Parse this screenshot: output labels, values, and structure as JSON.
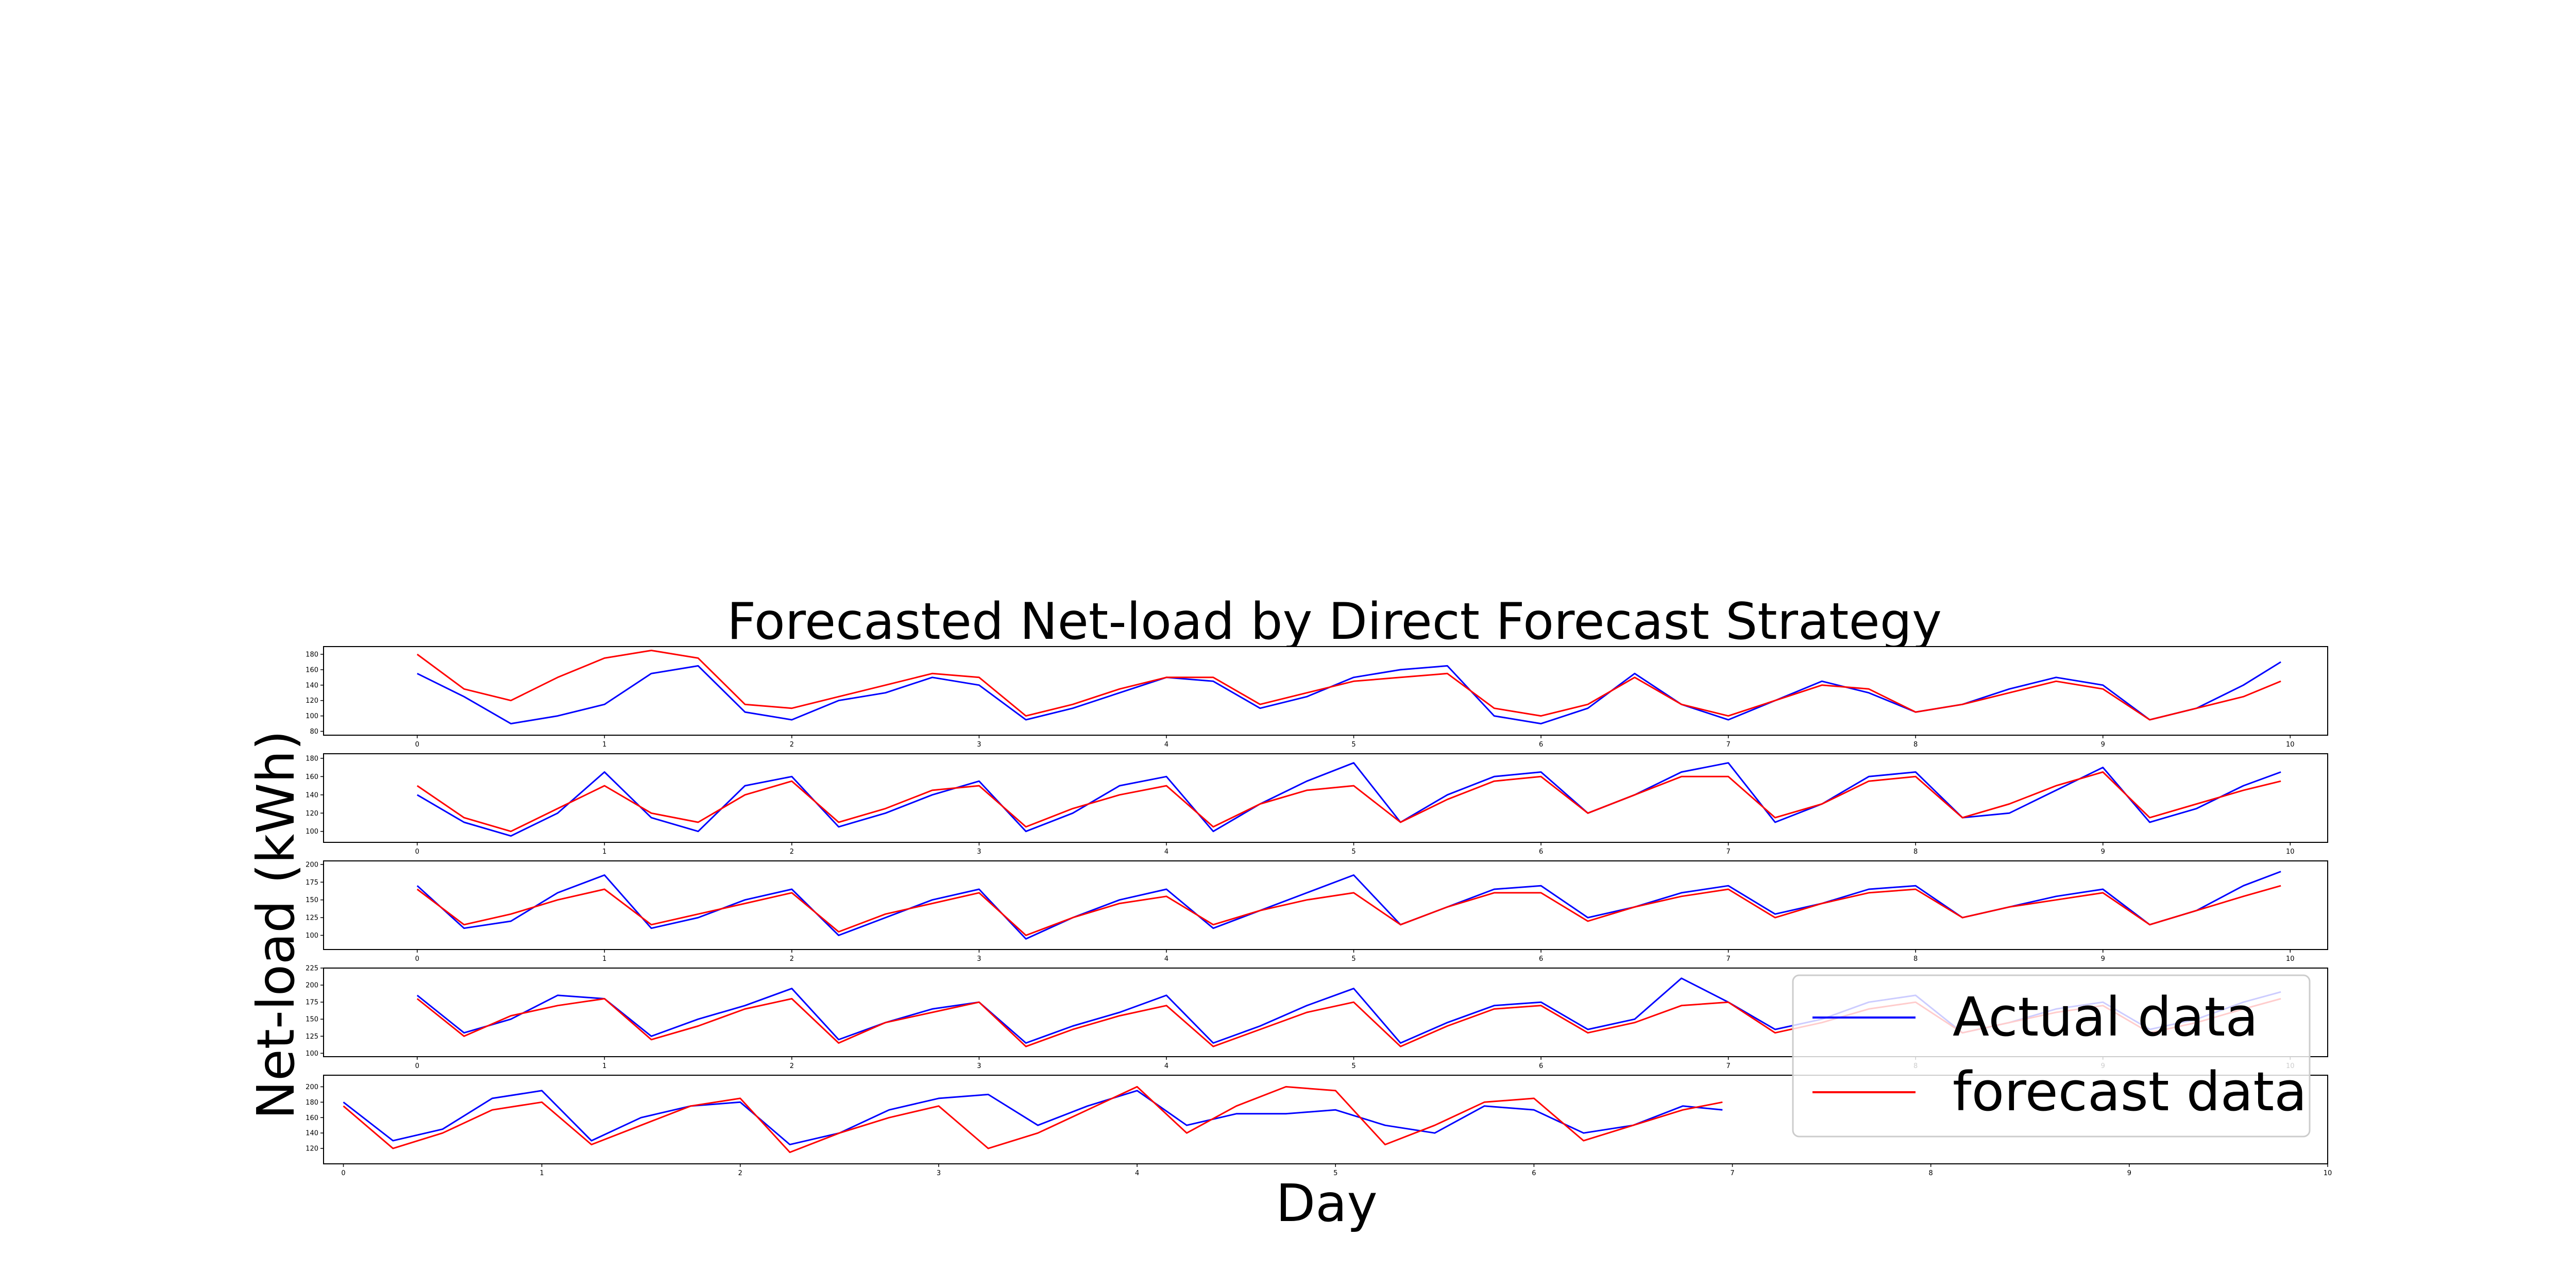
{
  "figure": {
    "title": "Forecasted Net-load by Direct Forecast Strategy",
    "xlabel": "Day",
    "ylabel": "Net-load (kWh)"
  },
  "colors": {
    "actual": "#0000ff",
    "forecast": "#ff0000",
    "frame": "#000000",
    "legend_frame": "#cccccc"
  },
  "legend": {
    "placement": "lower-right",
    "entries": [
      {
        "label": "Actual data",
        "color": "#0000ff"
      },
      {
        "label": "forecast data",
        "color": "#ff0000"
      }
    ]
  },
  "chart_data": [
    {
      "type": "line",
      "panel": 1,
      "xlim": [
        -0.5,
        10.2
      ],
      "ylim": [
        75,
        190
      ],
      "xticks": [
        0,
        1,
        2,
        3,
        4,
        5,
        6,
        7,
        8,
        9,
        10
      ],
      "yticks": [
        80,
        100,
        120,
        140,
        160,
        180
      ],
      "x": [
        0,
        0.25,
        0.5,
        0.75,
        1,
        1.25,
        1.5,
        1.75,
        2,
        2.25,
        2.5,
        2.75,
        3,
        3.25,
        3.5,
        3.75,
        4,
        4.25,
        4.5,
        4.75,
        5,
        5.25,
        5.5,
        5.75,
        6,
        6.25,
        6.5,
        6.75,
        7,
        7.25,
        7.5,
        7.75,
        8,
        8.25,
        8.5,
        8.75,
        9,
        9.25,
        9.5,
        9.75,
        9.95
      ],
      "series": [
        {
          "name": "Actual data",
          "key": "actual",
          "values": [
            155,
            125,
            90,
            100,
            115,
            155,
            165,
            105,
            95,
            120,
            130,
            150,
            140,
            95,
            110,
            130,
            150,
            145,
            110,
            125,
            150,
            160,
            165,
            100,
            90,
            110,
            155,
            115,
            95,
            120,
            145,
            130,
            105,
            115,
            135,
            150,
            140,
            95,
            110,
            140,
            170
          ]
        },
        {
          "name": "forecast data",
          "key": "forecast",
          "values": [
            180,
            135,
            120,
            150,
            175,
            185,
            175,
            115,
            110,
            125,
            140,
            155,
            150,
            100,
            115,
            135,
            150,
            150,
            115,
            130,
            145,
            150,
            155,
            110,
            100,
            115,
            150,
            115,
            100,
            120,
            140,
            135,
            105,
            115,
            130,
            145,
            135,
            95,
            110,
            125,
            145
          ]
        }
      ]
    },
    {
      "type": "line",
      "panel": 2,
      "xlim": [
        -0.5,
        10.2
      ],
      "ylim": [
        88,
        185
      ],
      "xticks": [
        0,
        1,
        2,
        3,
        4,
        5,
        6,
        7,
        8,
        9,
        10
      ],
      "yticks": [
        100,
        120,
        140,
        160,
        180
      ],
      "x": [
        0,
        0.25,
        0.5,
        0.75,
        1,
        1.25,
        1.5,
        1.75,
        2,
        2.25,
        2.5,
        2.75,
        3,
        3.25,
        3.5,
        3.75,
        4,
        4.25,
        4.5,
        4.75,
        5,
        5.25,
        5.5,
        5.75,
        6,
        6.25,
        6.5,
        6.75,
        7,
        7.25,
        7.5,
        7.75,
        8,
        8.25,
        8.5,
        8.75,
        9,
        9.25,
        9.5,
        9.75,
        9.95
      ],
      "series": [
        {
          "name": "Actual data",
          "key": "actual",
          "values": [
            140,
            110,
            95,
            120,
            165,
            115,
            100,
            150,
            160,
            105,
            120,
            140,
            155,
            100,
            120,
            150,
            160,
            100,
            130,
            155,
            175,
            110,
            140,
            160,
            165,
            120,
            140,
            165,
            175,
            110,
            130,
            160,
            165,
            115,
            120,
            145,
            170,
            110,
            125,
            150,
            165
          ]
        },
        {
          "name": "forecast data",
          "key": "forecast",
          "values": [
            150,
            115,
            100,
            125,
            150,
            120,
            110,
            140,
            155,
            110,
            125,
            145,
            150,
            105,
            125,
            140,
            150,
            105,
            130,
            145,
            150,
            110,
            135,
            155,
            160,
            120,
            140,
            160,
            160,
            115,
            130,
            155,
            160,
            115,
            130,
            150,
            165,
            115,
            130,
            145,
            155
          ]
        }
      ]
    },
    {
      "type": "line",
      "panel": 3,
      "xlim": [
        -0.5,
        10.2
      ],
      "ylim": [
        80,
        205
      ],
      "xticks": [
        0,
        1,
        2,
        3,
        4,
        5,
        6,
        7,
        8,
        9,
        10
      ],
      "yticks": [
        100,
        125,
        150,
        175,
        200
      ],
      "x": [
        0,
        0.25,
        0.5,
        0.75,
        1,
        1.25,
        1.5,
        1.75,
        2,
        2.25,
        2.5,
        2.75,
        3,
        3.25,
        3.5,
        3.75,
        4,
        4.25,
        4.5,
        4.75,
        5,
        5.25,
        5.5,
        5.75,
        6,
        6.25,
        6.5,
        6.75,
        7,
        7.25,
        7.5,
        7.75,
        8,
        8.25,
        8.5,
        8.75,
        9,
        9.25,
        9.5,
        9.75,
        9.95
      ],
      "series": [
        {
          "name": "Actual data",
          "key": "actual",
          "values": [
            170,
            110,
            120,
            160,
            185,
            110,
            125,
            150,
            165,
            100,
            125,
            150,
            165,
            95,
            125,
            150,
            165,
            110,
            135,
            160,
            185,
            115,
            140,
            165,
            170,
            125,
            140,
            160,
            170,
            130,
            145,
            165,
            170,
            125,
            140,
            155,
            165,
            115,
            135,
            170,
            190
          ]
        },
        {
          "name": "forecast data",
          "key": "forecast",
          "values": [
            165,
            115,
            130,
            150,
            165,
            115,
            130,
            145,
            160,
            105,
            130,
            145,
            160,
            100,
            125,
            145,
            155,
            115,
            135,
            150,
            160,
            115,
            140,
            160,
            160,
            120,
            140,
            155,
            165,
            125,
            145,
            160,
            165,
            125,
            140,
            150,
            160,
            115,
            135,
            155,
            170
          ]
        }
      ]
    },
    {
      "type": "line",
      "panel": 4,
      "xlim": [
        -0.5,
        10.2
      ],
      "ylim": [
        95,
        225
      ],
      "xticks": [
        0,
        1,
        2,
        3,
        4,
        5,
        6,
        7,
        8,
        9,
        10
      ],
      "yticks": [
        100,
        125,
        150,
        175,
        200,
        225
      ],
      "x": [
        0,
        0.25,
        0.5,
        0.75,
        1,
        1.25,
        1.5,
        1.75,
        2,
        2.25,
        2.5,
        2.75,
        3,
        3.25,
        3.5,
        3.75,
        4,
        4.25,
        4.5,
        4.75,
        5,
        5.25,
        5.5,
        5.75,
        6,
        6.25,
        6.5,
        6.75,
        7,
        7.25,
        7.5,
        7.75,
        8,
        8.25,
        8.5,
        8.75,
        9,
        9.25,
        9.5,
        9.75,
        9.95
      ],
      "series": [
        {
          "name": "Actual data",
          "key": "actual",
          "values": [
            185,
            130,
            150,
            185,
            180,
            125,
            150,
            170,
            195,
            120,
            145,
            165,
            175,
            115,
            140,
            160,
            185,
            115,
            140,
            170,
            195,
            115,
            145,
            170,
            175,
            135,
            150,
            210,
            175,
            135,
            150,
            175,
            185,
            130,
            145,
            165,
            175,
            135,
            150,
            175,
            190
          ]
        },
        {
          "name": "forecast data",
          "key": "forecast",
          "values": [
            180,
            125,
            155,
            170,
            180,
            120,
            140,
            165,
            180,
            115,
            145,
            160,
            175,
            110,
            135,
            155,
            170,
            110,
            135,
            160,
            175,
            110,
            140,
            165,
            170,
            130,
            145,
            170,
            175,
            130,
            145,
            165,
            175,
            130,
            145,
            160,
            170,
            130,
            145,
            165,
            180
          ]
        }
      ]
    },
    {
      "type": "line",
      "panel": 5,
      "xlim": [
        -0.1,
        10
      ],
      "ylim": [
        100,
        215
      ],
      "xticks": [
        0,
        1,
        2,
        3,
        4,
        5,
        6,
        7,
        8,
        9,
        10
      ],
      "yticks": [
        120,
        140,
        160,
        180,
        200
      ],
      "x": [
        0,
        0.25,
        0.5,
        0.75,
        1,
        1.25,
        1.5,
        1.75,
        2,
        2.25,
        2.5,
        2.75,
        3,
        3.25,
        3.5,
        3.75,
        4,
        4.25,
        4.5,
        4.75,
        5,
        5.25,
        5.5,
        5.75,
        6,
        6.25,
        6.5,
        6.75,
        6.95
      ],
      "series": [
        {
          "name": "Actual data",
          "key": "actual",
          "values": [
            180,
            130,
            145,
            185,
            195,
            130,
            160,
            175,
            180,
            125,
            140,
            170,
            185,
            190,
            150,
            175,
            195,
            150,
            165,
            165,
            170,
            150,
            140,
            175,
            170,
            140,
            150,
            175,
            170
          ]
        },
        {
          "name": "forecast data",
          "key": "forecast",
          "values": [
            175,
            120,
            140,
            170,
            180,
            125,
            150,
            175,
            185,
            115,
            140,
            160,
            175,
            120,
            140,
            170,
            200,
            140,
            175,
            200,
            195,
            125,
            150,
            180,
            185,
            130,
            150,
            170,
            180
          ]
        }
      ]
    }
  ]
}
